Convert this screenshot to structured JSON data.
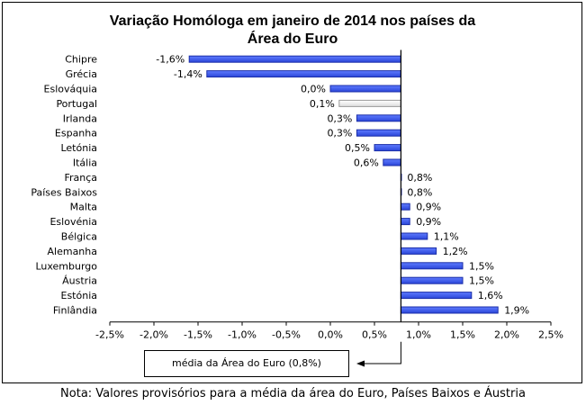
{
  "chart_data": {
    "type": "bar",
    "orientation": "horizontal",
    "title": "Variação Homóloga em janeiro de 2014 nos países da Área do Euro",
    "categories": [
      "Chipre",
      "Grécia",
      "Eslováquia",
      "Portugal",
      "Irlanda",
      "Espanha",
      "Letónia",
      "Itália",
      "França",
      "Países Baixos",
      "Malta",
      "Eslovénia",
      "Bélgica",
      "Alemanha",
      "Luxemburgo",
      "Áustria",
      "Estónia",
      "Finlândia"
    ],
    "values": [
      -1.6,
      -1.4,
      0.0,
      0.1,
      0.3,
      0.3,
      0.5,
      0.6,
      0.8,
      0.8,
      0.9,
      0.9,
      1.1,
      1.2,
      1.5,
      1.5,
      1.6,
      1.9
    ],
    "value_labels": [
      "-1,6%",
      "-1,4%",
      "0,0%",
      "0,1%",
      "0,3%",
      "0,3%",
      "0,5%",
      "0,6%",
      "0,8%",
      "0,8%",
      "0,9%",
      "0,9%",
      "1,1%",
      "1,2%",
      "1,5%",
      "1,5%",
      "1,6%",
      "1,9%"
    ],
    "baseline": 0.8,
    "highlight_category": "Portugal",
    "xlim": [
      -2.5,
      2.5
    ],
    "xticks": [
      -2.5,
      -2.0,
      -1.5,
      -1.0,
      -0.5,
      0.0,
      0.5,
      1.0,
      1.5,
      2.0,
      2.5
    ],
    "xtick_labels": [
      "-2,5%",
      "-2,0%",
      "-1,5%",
      "-1,0%",
      "-0,5%",
      "0,0%",
      "0,5%",
      "1,0%",
      "1,5%",
      "2,0%",
      "2,5%"
    ],
    "grid": false,
    "colors": {
      "bar_fill": "#3a5cf0",
      "bar_dark": "#1b2ea8",
      "highlight_fill": "#ffffff",
      "highlight_dark": "#9a9a9a",
      "axis": "#000000"
    }
  },
  "legend_annotation": "média da Área do Euro (0,8%)",
  "note": "Nota: Valores provisórios para a média da área do Euro, Países Baixos e Áustria"
}
